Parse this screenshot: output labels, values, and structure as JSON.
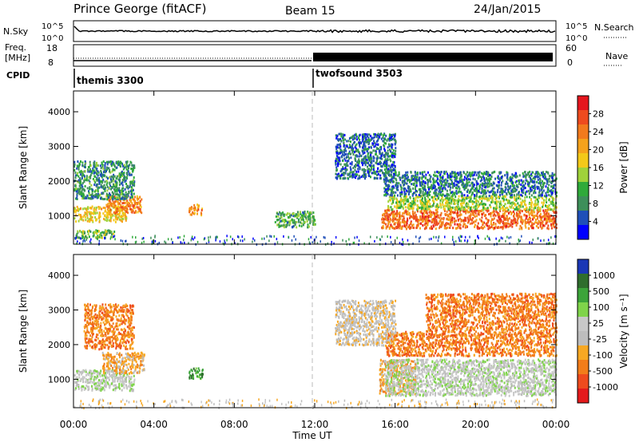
{
  "header": {
    "station": "Prince George (fitACF)",
    "beam": "Beam 15",
    "date": "24/Jan/2015"
  },
  "status_panel": {
    "nsky_label": "N.Sky",
    "nsearch_label": "N.Search",
    "freq_label_line1": "Freq.",
    "freq_label_line2": "[MHz]",
    "nave_label": "Nave",
    "cpid_label": "CPID",
    "nsky_ticks": [
      "10^5",
      "10^0"
    ],
    "nsearch_ticks": [
      "10^5",
      "10^0"
    ],
    "freq_ticks": [
      "18",
      "8"
    ],
    "nave_ticks": [
      "60",
      "0"
    ],
    "modes": [
      {
        "name": "themis 3300",
        "start_hour": 0
      },
      {
        "name": "twofsound 3503",
        "start_hour": 12
      }
    ]
  },
  "colors": {
    "power": [
      "#0000ff",
      "#1f4fb8",
      "#3d8f5a",
      "#2faa3a",
      "#9fd23a",
      "#f3c919",
      "#f5a21c",
      "#f27a1d",
      "#ee4b1e",
      "#e5161e"
    ],
    "velocity": [
      "#1a37b5",
      "#2f6d2d",
      "#3ca43a",
      "#7fd44a",
      "#c8c8c8",
      "#bdbdbd",
      "#f7a823",
      "#f27d1a",
      "#ee4b1e",
      "#e41a1c"
    ]
  },
  "chart_data": [
    {
      "type": "heatmap",
      "panel": "power",
      "ylabel": "Slant Range [km]",
      "ylim": [
        180,
        4600
      ],
      "yticks": [
        "1000",
        "2000",
        "3000",
        "4000"
      ],
      "xlim": [
        0,
        24
      ],
      "colorbar_label": "Power [dB]",
      "colorbar_ticks": [
        "4",
        "8",
        "12",
        "16",
        "20",
        "24",
        "28"
      ],
      "colorbar_range": [
        0,
        32
      ],
      "regions": [
        {
          "t0": 0.0,
          "t1": 2.6,
          "r0": 850,
          "r1": 1300,
          "level": 18
        },
        {
          "t0": 1.6,
          "t1": 3.4,
          "r0": 1100,
          "r1": 1600,
          "level": 24
        },
        {
          "t0": 0.0,
          "t1": 3.0,
          "r0": 1500,
          "r1": 2600,
          "level": 8
        },
        {
          "t0": 0.1,
          "t1": 2.0,
          "r0": 380,
          "r1": 620,
          "level": 12
        },
        {
          "t0": 5.7,
          "t1": 6.4,
          "r0": 1050,
          "r1": 1350,
          "level": 22
        },
        {
          "t0": 10.0,
          "t1": 12.0,
          "r0": 700,
          "r1": 1150,
          "level": 10
        },
        {
          "t0": 15.3,
          "t1": 24.0,
          "r0": 650,
          "r1": 1200,
          "level": 26
        },
        {
          "t0": 15.6,
          "t1": 24.0,
          "r0": 1200,
          "r1": 1600,
          "level": 14
        },
        {
          "t0": 15.4,
          "t1": 24.0,
          "r0": 1600,
          "r1": 2300,
          "level": 6
        },
        {
          "t0": 13.0,
          "t1": 16.0,
          "r0": 2100,
          "r1": 3400,
          "level": 5
        }
      ]
    },
    {
      "type": "heatmap",
      "panel": "velocity",
      "xlabel": "Time UT",
      "ylabel": "Slant Range [km]",
      "ylim": [
        180,
        4600
      ],
      "yticks": [
        "1000",
        "2000",
        "3000",
        "4000"
      ],
      "xlim": [
        0,
        24
      ],
      "xticks": [
        "00:00",
        "04:00",
        "08:00",
        "12:00",
        "16:00",
        "20:00",
        "00:00"
      ],
      "colorbar_label": "Velocity [m s⁻¹]",
      "colorbar_ticks": [
        "1000",
        "500",
        "100",
        "25",
        "-25",
        "-100",
        "-500",
        "-1000"
      ],
      "regions": [
        {
          "t0": 0.0,
          "t1": 3.0,
          "r0": 700,
          "r1": 1300,
          "level": 4
        },
        {
          "t0": 1.4,
          "t1": 3.5,
          "r0": 1200,
          "r1": 1800,
          "level": 6
        },
        {
          "t0": 0.5,
          "t1": 3.0,
          "r0": 1900,
          "r1": 3200,
          "level": 7
        },
        {
          "t0": 5.7,
          "t1": 6.4,
          "r0": 1050,
          "r1": 1350,
          "level": 2
        },
        {
          "t0": 15.2,
          "t1": 17.0,
          "r0": 600,
          "r1": 1600,
          "level": 6
        },
        {
          "t0": 15.5,
          "t1": 24.0,
          "r0": 550,
          "r1": 1600,
          "level": 4
        },
        {
          "t0": 15.5,
          "t1": 24.0,
          "r0": 1700,
          "r1": 2400,
          "level": 7
        },
        {
          "t0": 17.5,
          "t1": 24.0,
          "r0": 2400,
          "r1": 3500,
          "level": 7
        },
        {
          "t0": 13.0,
          "t1": 16.0,
          "r0": 2000,
          "r1": 3300,
          "level": 5
        }
      ]
    }
  ]
}
